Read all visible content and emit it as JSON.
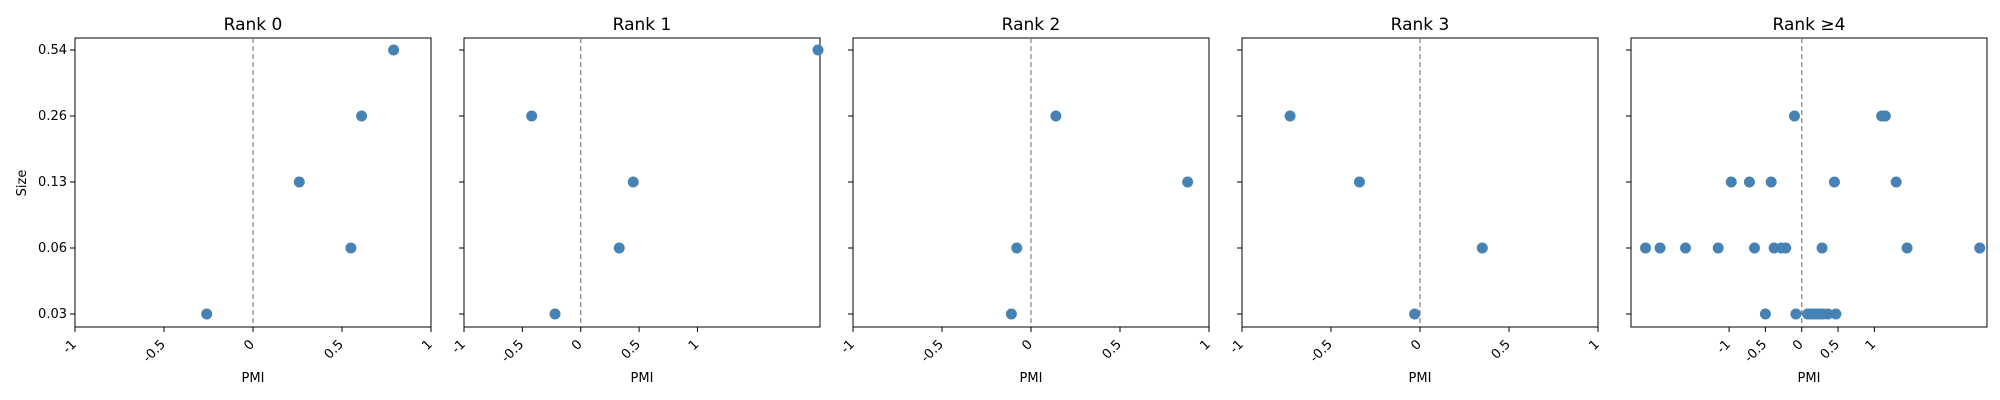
{
  "chart_data": {
    "type": "scatter",
    "shared_y": true,
    "ylabel": "Size",
    "xlabel": "PMI",
    "y_categories": [
      "0.03",
      "0.06",
      "0.13",
      "0.26",
      "0.54"
    ],
    "marker_color": "#4682b4",
    "zero_line": {
      "x": 0,
      "style": "dashed",
      "color": "#808080"
    },
    "panels": [
      {
        "title": "Rank 0",
        "xlim": [
          -1,
          1
        ],
        "xticks": [
          -1,
          -0.5,
          0,
          0.5,
          1
        ],
        "xtick_labels": [
          "-1",
          "-0.5",
          "0",
          "0.5",
          "1"
        ],
        "points": [
          {
            "x": 0.79,
            "y": "0.54"
          },
          {
            "x": 0.61,
            "y": "0.26"
          },
          {
            "x": 0.26,
            "y": "0.13"
          },
          {
            "x": 0.55,
            "y": "0.06"
          },
          {
            "x": -0.26,
            "y": "0.03"
          }
        ]
      },
      {
        "title": "Rank 1",
        "xlim": [
          -1,
          2.05
        ],
        "xticks": [
          -1,
          -0.5,
          0,
          0.5,
          1
        ],
        "xtick_labels": [
          "-1",
          "-0.5",
          "0",
          "0.5",
          "1"
        ],
        "points": [
          {
            "x": 2.05,
            "y": "0.54"
          },
          {
            "x": -0.42,
            "y": "0.26"
          },
          {
            "x": 0.45,
            "y": "0.13"
          },
          {
            "x": 0.33,
            "y": "0.06"
          },
          {
            "x": -0.22,
            "y": "0.03"
          }
        ]
      },
      {
        "title": "Rank 2",
        "xlim": [
          -1,
          1
        ],
        "xticks": [
          -1,
          -0.5,
          0,
          0.5,
          1
        ],
        "xtick_labels": [
          "-1",
          "-0.5",
          "0",
          "0.5",
          "1"
        ],
        "points": [
          {
            "x": 0.14,
            "y": "0.26"
          },
          {
            "x": 0.88,
            "y": "0.13"
          },
          {
            "x": -0.08,
            "y": "0.06"
          },
          {
            "x": -0.11,
            "y": "0.03"
          }
        ]
      },
      {
        "title": "Rank 3",
        "xlim": [
          -1,
          1
        ],
        "xticks": [
          -1,
          -0.5,
          0,
          0.5,
          1
        ],
        "xtick_labels": [
          "-1",
          "-0.5",
          "0",
          "0.5",
          "1"
        ],
        "points": [
          {
            "x": -0.73,
            "y": "0.26"
          },
          {
            "x": -0.34,
            "y": "0.13"
          },
          {
            "x": 0.35,
            "y": "0.06"
          },
          {
            "x": -0.03,
            "y": "0.03"
          }
        ]
      },
      {
        "title": "Rank ≥4",
        "xlim": [
          -2.35,
          2.55
        ],
        "xticks": [
          -1,
          -0.5,
          0,
          0.5,
          1
        ],
        "xtick_labels": [
          "-1",
          "-0.5",
          "0",
          "0.5",
          "1"
        ],
        "points": [
          {
            "x": -0.1,
            "y": "0.26"
          },
          {
            "x": 1.1,
            "y": "0.26"
          },
          {
            "x": 1.15,
            "y": "0.26"
          },
          {
            "x": -0.97,
            "y": "0.13"
          },
          {
            "x": -0.72,
            "y": "0.13"
          },
          {
            "x": -0.42,
            "y": "0.13"
          },
          {
            "x": 0.45,
            "y": "0.13"
          },
          {
            "x": 1.3,
            "y": "0.13"
          },
          {
            "x": -2.15,
            "y": "0.06"
          },
          {
            "x": -1.95,
            "y": "0.06"
          },
          {
            "x": -1.6,
            "y": "0.06"
          },
          {
            "x": -1.15,
            "y": "0.06"
          },
          {
            "x": -0.65,
            "y": "0.06"
          },
          {
            "x": -0.38,
            "y": "0.06"
          },
          {
            "x": -0.28,
            "y": "0.06"
          },
          {
            "x": -0.22,
            "y": "0.06"
          },
          {
            "x": 0.28,
            "y": "0.06"
          },
          {
            "x": 1.45,
            "y": "0.06"
          },
          {
            "x": 2.45,
            "y": "0.06"
          },
          {
            "x": -0.5,
            "y": "0.03"
          },
          {
            "x": -0.08,
            "y": "0.03"
          },
          {
            "x": 0.08,
            "y": "0.03"
          },
          {
            "x": 0.12,
            "y": "0.03"
          },
          {
            "x": 0.17,
            "y": "0.03"
          },
          {
            "x": 0.21,
            "y": "0.03"
          },
          {
            "x": 0.26,
            "y": "0.03"
          },
          {
            "x": 0.3,
            "y": "0.03"
          },
          {
            "x": 0.36,
            "y": "0.03"
          },
          {
            "x": 0.47,
            "y": "0.03"
          }
        ]
      }
    ]
  }
}
